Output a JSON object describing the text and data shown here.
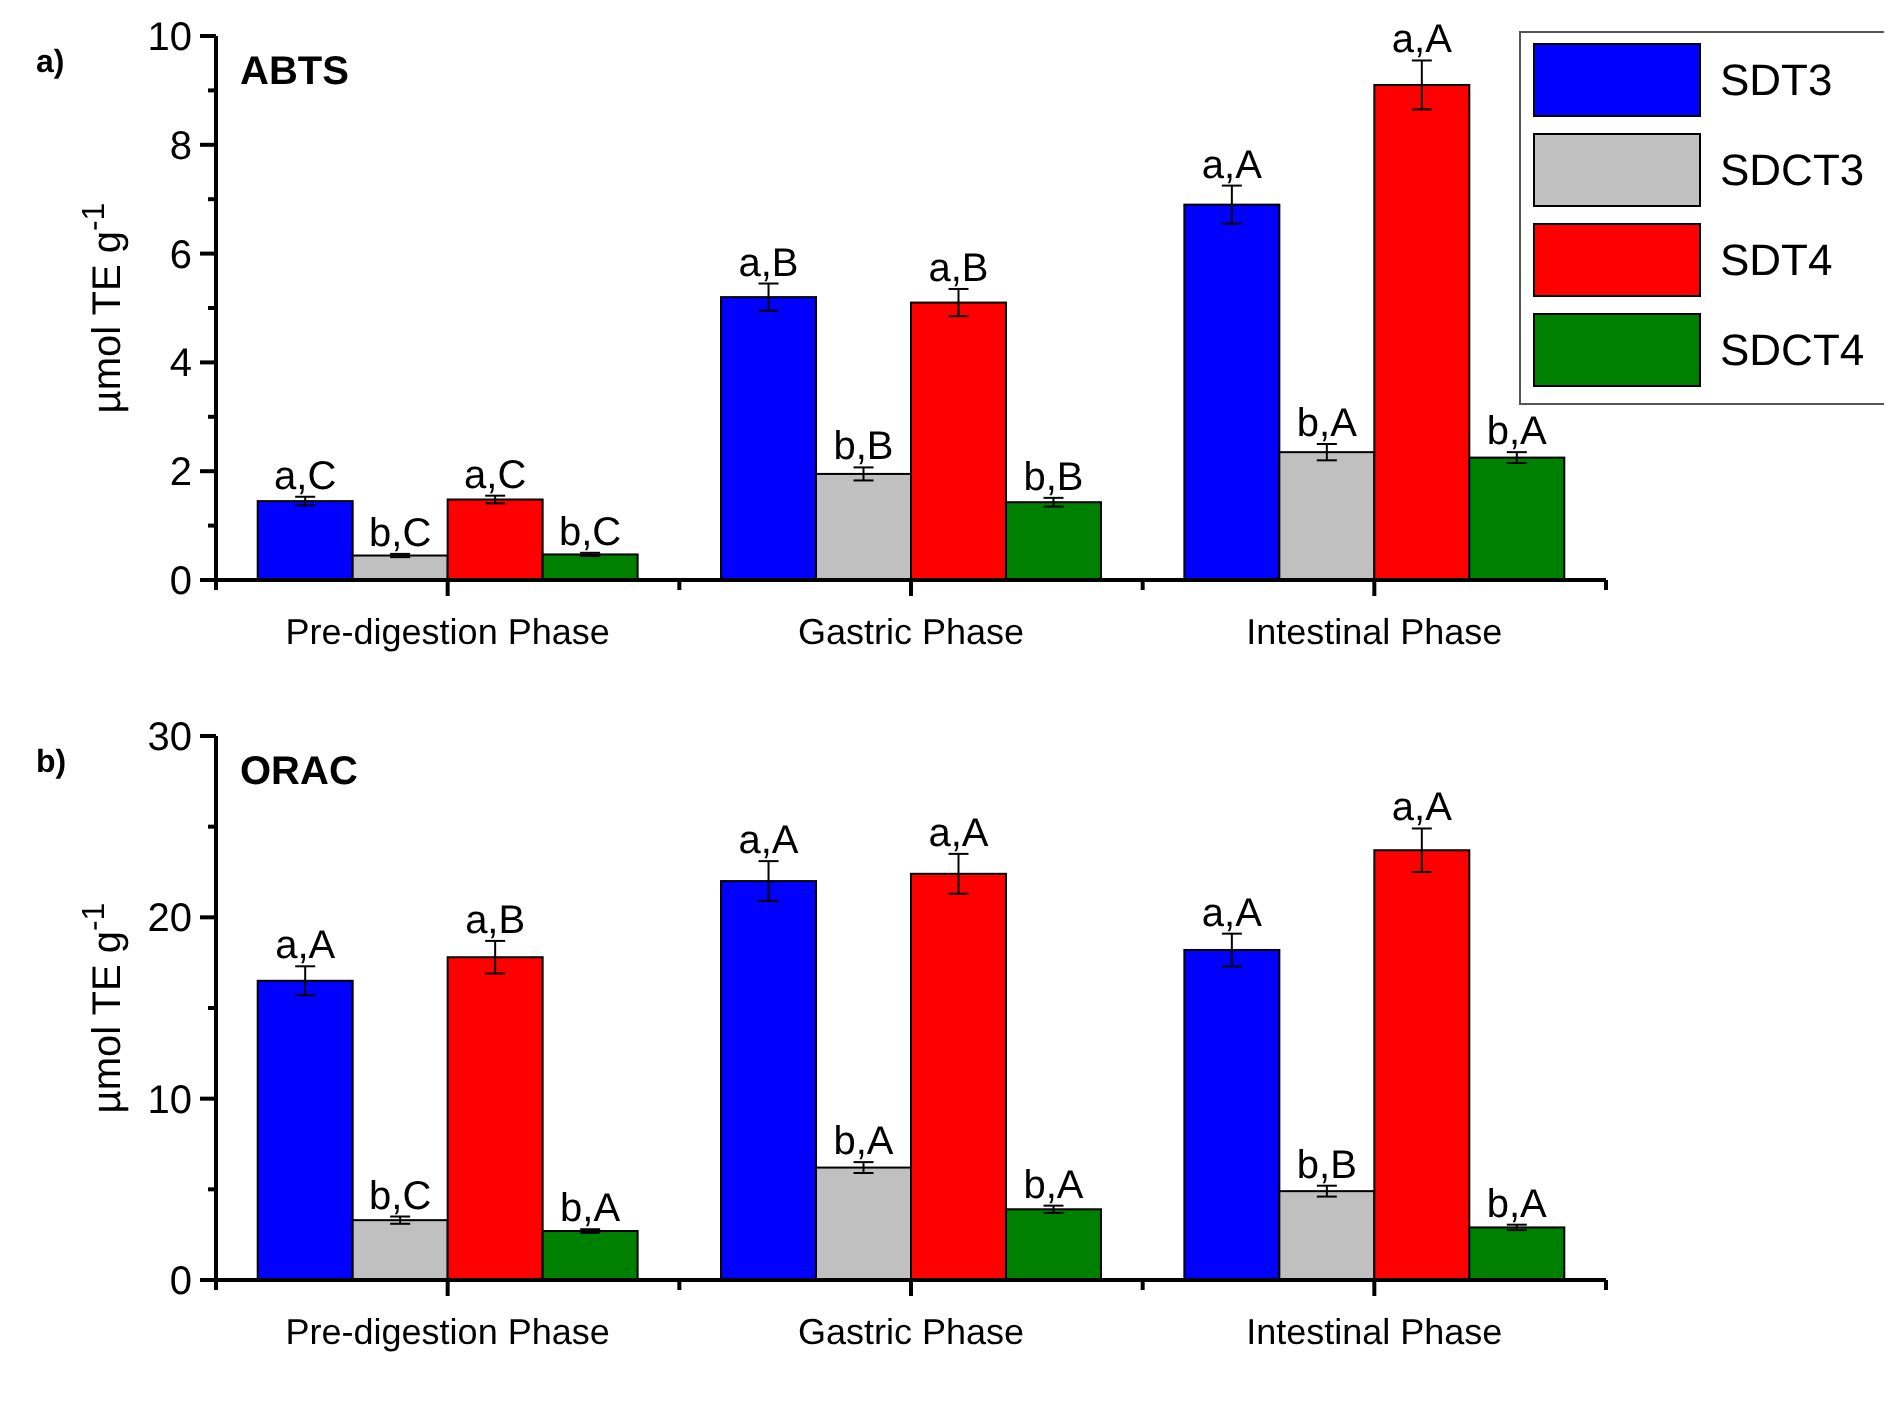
{
  "chart_data": [
    {
      "type": "bar",
      "title": "ABTS",
      "ylabel": "µmol TE g$^{-1}$",
      "annotations": [
        "a)"
      ],
      "categories": [
        "Pre-digestion Phase",
        "Gastric Phase",
        "Intestinal Phase"
      ],
      "ylim": [
        0,
        10
      ],
      "yticks": [
        0,
        {
          "value": 1,
          "label": null
        },
        2,
        {
          "value": 3,
          "label": null
        },
        4,
        {
          "value": 5,
          "label": null
        },
        6,
        {
          "value": 7,
          "label": null
        },
        8,
        {
          "value": 9,
          "label": null
        },
        10
      ],
      "legend": "top right",
      "grid": false,
      "series": [
        {
          "name": "SDT3",
          "color": "#0000ff",
          "values": [
            1.45,
            5.2,
            6.9
          ],
          "errors": [
            0.08,
            0.25,
            0.35
          ],
          "value_labels": [
            "a,C",
            "a,B",
            "a,A"
          ]
        },
        {
          "name": "SDCT3",
          "color": "#c0c0c0",
          "values": [
            0.45,
            1.95,
            2.35
          ],
          "errors": [
            0.03,
            0.12,
            0.15
          ],
          "value_labels": [
            "b,C",
            "b,B",
            "b,A"
          ]
        },
        {
          "name": "SDT4",
          "color": "#ff0000",
          "values": [
            1.48,
            5.1,
            9.1
          ],
          "errors": [
            0.07,
            0.25,
            0.45
          ],
          "value_labels": [
            "a,C",
            "a,B",
            "a,A"
          ]
        },
        {
          "name": "SDCT4",
          "color": "#008000",
          "values": [
            0.47,
            1.43,
            2.25
          ],
          "errors": [
            0.03,
            0.08,
            0.1
          ],
          "value_labels": [
            "b,C",
            "b,B",
            "b,A"
          ]
        }
      ]
    },
    {
      "type": "bar",
      "title": "ORAC",
      "ylabel": "µmol TE g$^{-1}$",
      "annotations": [
        "b)"
      ],
      "categories": [
        "Pre-digestion Phase",
        "Gastric Phase",
        "Intestinal Phase"
      ],
      "ylim": [
        0,
        30
      ],
      "yticks": [
        0,
        {
          "value": 5,
          "label": null
        },
        10,
        {
          "value": 15,
          "label": null
        },
        20,
        {
          "value": 25,
          "label": null
        },
        30
      ],
      "legend": false,
      "grid": false,
      "series": [
        {
          "color": "#0000ff",
          "values": [
            16.5,
            22.0,
            18.2
          ],
          "errors": [
            0.8,
            1.1,
            0.9
          ],
          "value_labels": [
            "a,A",
            "a,A",
            "a,A"
          ]
        },
        {
          "color": "#c0c0c0",
          "values": [
            3.3,
            6.2,
            4.9
          ],
          "errors": [
            0.2,
            0.3,
            0.3
          ],
          "value_labels": [
            "b,C",
            "b,A",
            "b,B"
          ]
        },
        {
          "color": "#ff0000",
          "values": [
            17.8,
            22.4,
            23.7
          ],
          "errors": [
            0.9,
            1.1,
            1.2
          ],
          "value_labels": [
            "a,B",
            "a,A",
            "a,A"
          ]
        },
        {
          "color": "#008000",
          "values": [
            2.7,
            3.9,
            2.9
          ],
          "errors": [
            0.1,
            0.2,
            0.15
          ],
          "value_labels": [
            "b,A",
            "b,A",
            "b,A"
          ]
        }
      ]
    }
  ]
}
